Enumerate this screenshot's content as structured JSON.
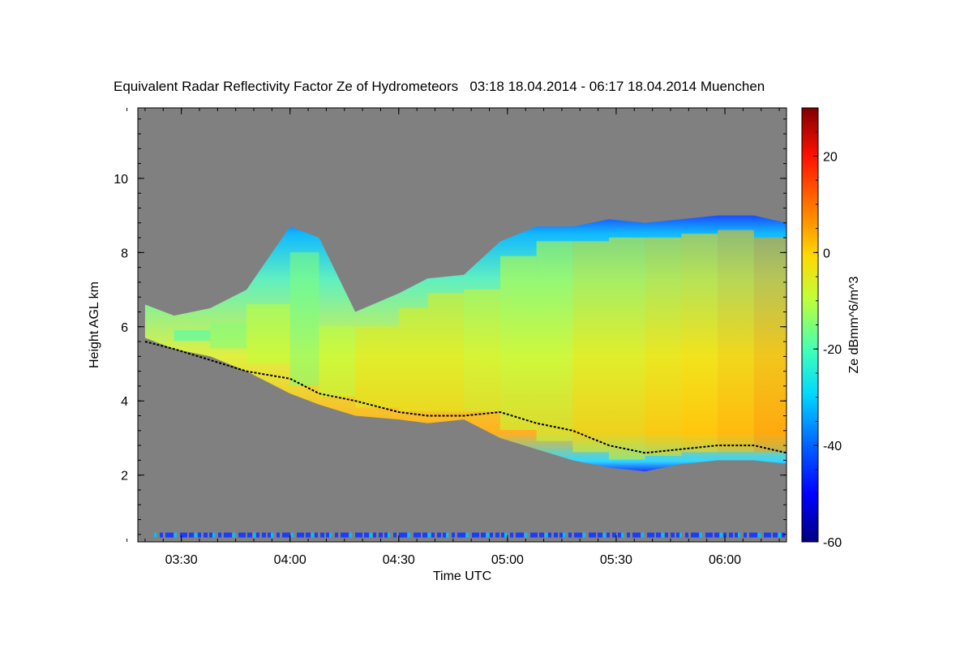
{
  "chart_data": {
    "type": "heatmap",
    "title": "Equivalent Radar Reflectivity Factor Ze of Hydrometeors   03:18 18.04.2014 - 06:17 18.04.2014 Muenchen",
    "xlabel": "Time UTC",
    "ylabel": "Height AGL km",
    "x_range": [
      "03:18",
      "06:17"
    ],
    "x_ticks": [
      "03:30",
      "04:00",
      "04:30",
      "05:00",
      "05:30",
      "06:00"
    ],
    "y_ticks": [
      2,
      4,
      6,
      8,
      10
    ],
    "ylim": [
      0.2,
      11.9
    ],
    "colorbar": {
      "label": "Ze dBmm^6/m^3",
      "range": [
        -60,
        30
      ],
      "ticks": [
        -60,
        -40,
        -20,
        0,
        20
      ]
    },
    "no_signal_color": "#808080",
    "cloud_layer": {
      "time_min": [
        2,
        10,
        20,
        30,
        42,
        50,
        60,
        72,
        80,
        90,
        100,
        110,
        120,
        130,
        140,
        150,
        160,
        170,
        179
      ],
      "top_km": [
        6.6,
        6.3,
        6.5,
        7.0,
        8.7,
        8.4,
        6.4,
        6.9,
        7.3,
        7.4,
        8.3,
        8.7,
        8.7,
        8.9,
        8.8,
        8.9,
        9.0,
        9.0,
        8.8
      ],
      "base_km": [
        5.7,
        5.4,
        5.2,
        4.8,
        4.2,
        3.9,
        3.6,
        3.5,
        3.4,
        3.5,
        3.0,
        2.7,
        2.4,
        2.2,
        2.1,
        2.3,
        2.4,
        2.4,
        2.3
      ],
      "core_ze": [
        -25,
        -20,
        -15,
        -10,
        -15,
        -10,
        -5,
        -5,
        -5,
        -8,
        -10,
        -10,
        -5,
        -5,
        -2,
        0,
        2,
        5,
        3
      ]
    },
    "melting_layer_dots": {
      "time_min": [
        2,
        10,
        20,
        30,
        42,
        50,
        60,
        72,
        80,
        90,
        100,
        110,
        120,
        130,
        140,
        150,
        160,
        170,
        179
      ],
      "height_km": [
        5.6,
        5.4,
        5.1,
        4.8,
        4.6,
        4.2,
        4.0,
        3.7,
        3.6,
        3.6,
        3.7,
        3.4,
        3.2,
        2.8,
        2.6,
        2.7,
        2.8,
        2.8,
        2.6
      ]
    }
  }
}
